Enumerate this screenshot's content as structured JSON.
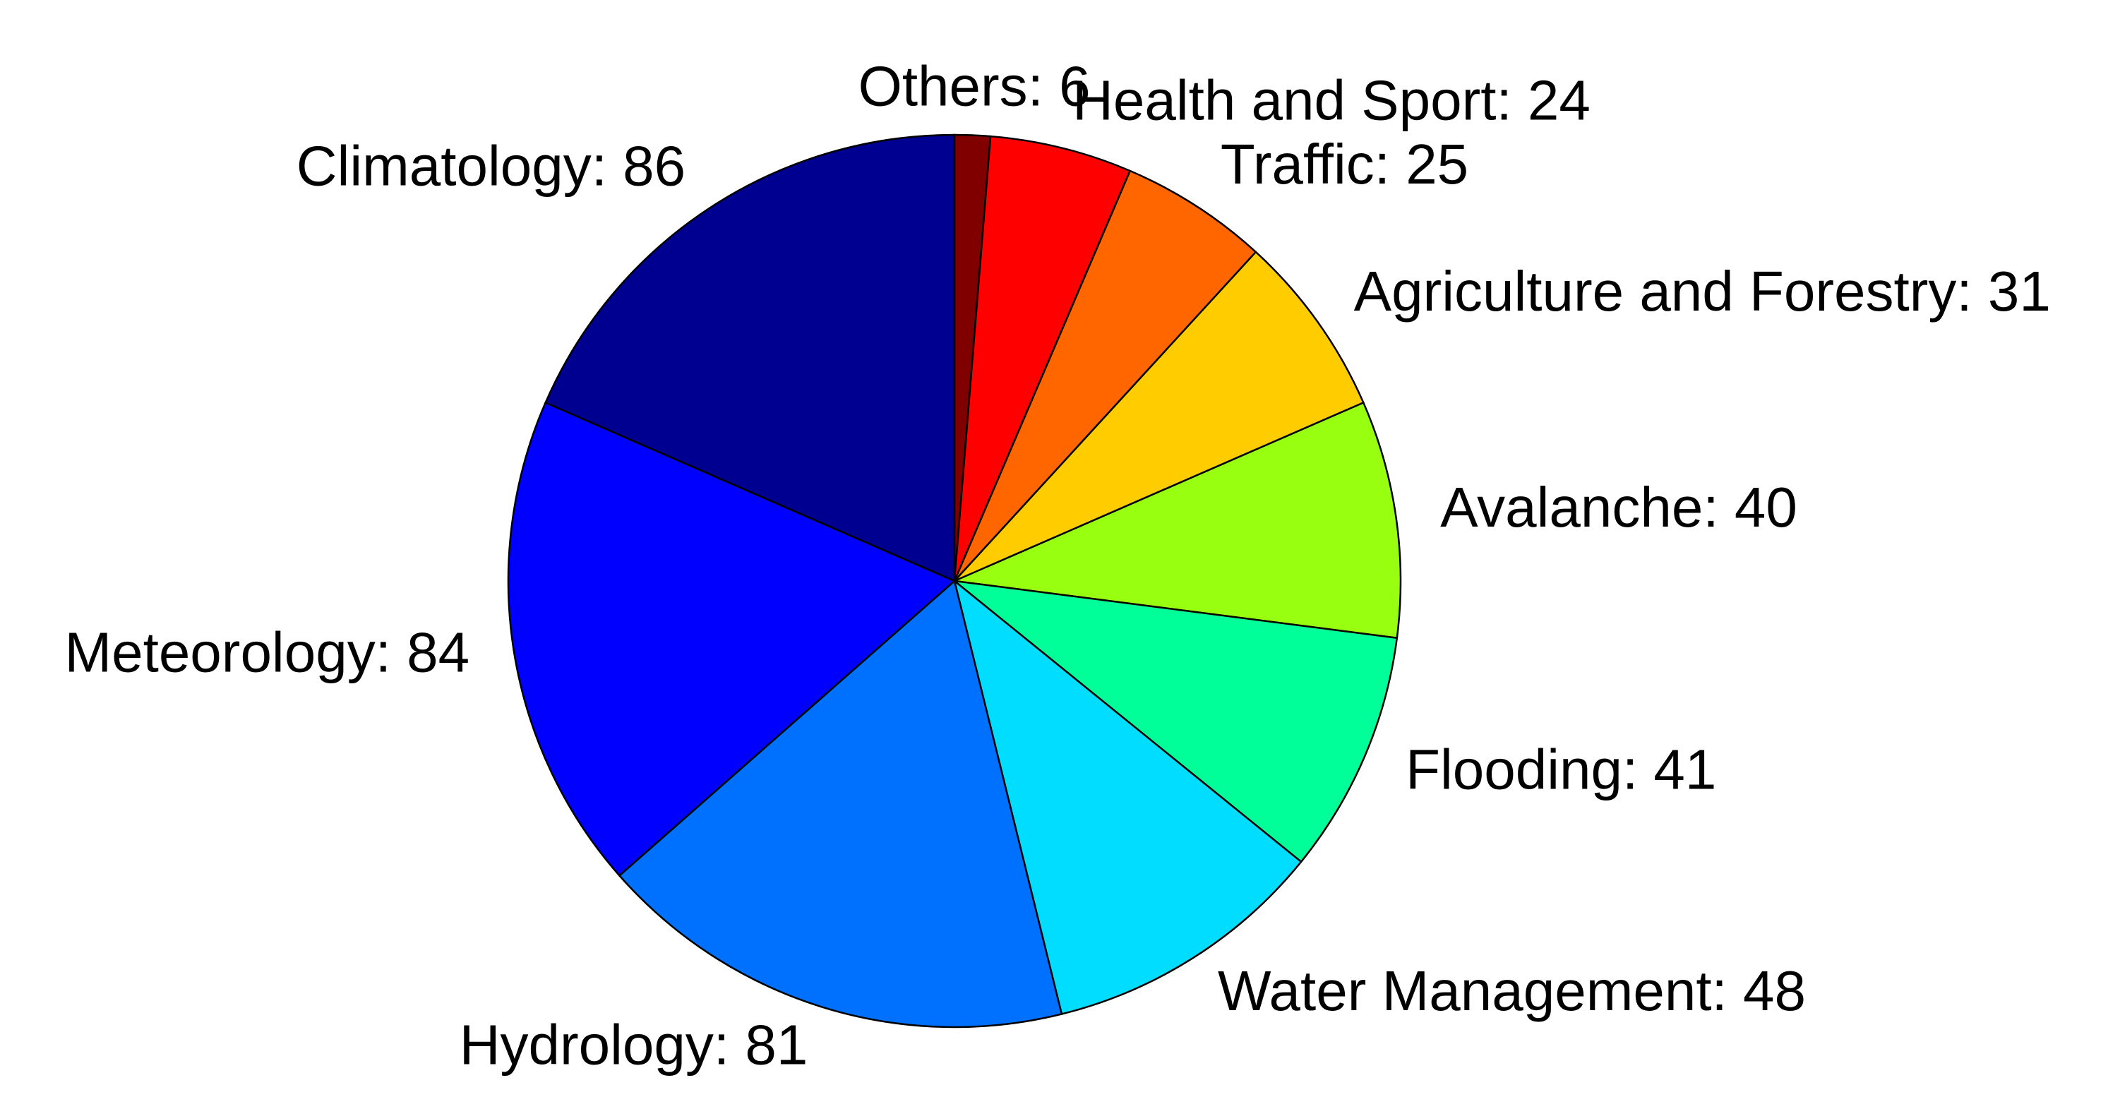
{
  "chart_data": {
    "type": "pie",
    "values": [
      6,
      24,
      25,
      31,
      40,
      41,
      48,
      81,
      84,
      86
    ],
    "value_labels": [
      "Others: 6",
      "Health and Sport: 24",
      "Traffic: 25",
      "Agriculture and Forestry: 31",
      "Avalanche: 40",
      "Flooding: 41",
      "Water Management: 48",
      "Hydrology: 81",
      "Meteorology: 84",
      "Climatology: 86"
    ],
    "colors": [
      "#800000",
      "#ff0000",
      "#ff6600",
      "#ffcc00",
      "#99ff11",
      "#00ff99",
      "#00ddff",
      "#0070ff",
      "#0000ff",
      "#000090"
    ]
  }
}
